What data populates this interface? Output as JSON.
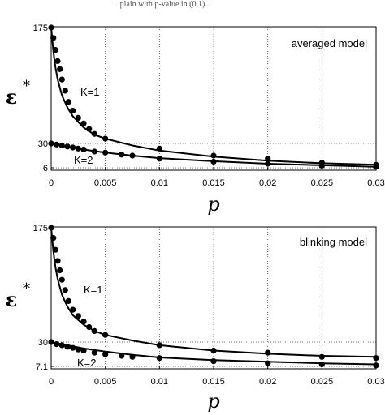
{
  "header_text": "...plain with p-value in (0,1)...",
  "chart_data": [
    {
      "type": "line",
      "annotation": "averaged model",
      "xlabel": "p",
      "ylabel": "ε",
      "ylabel_sup": "*",
      "xlim": [
        0,
        0.03
      ],
      "ylim": [
        0,
        175
      ],
      "grid": true,
      "x_ticks": [
        "0",
        "0.005",
        "0.01",
        "0.015",
        "0.02",
        "0.025",
        "0.03"
      ],
      "y_ticks": [
        {
          "value": 175,
          "label": "175"
        },
        {
          "value": 30,
          "label": "30"
        },
        {
          "value": 6,
          "label": "6"
        }
      ],
      "series": [
        {
          "name": "K=1",
          "line": [
            [
              0,
              175
            ],
            [
              0.0002,
              145
            ],
            [
              0.0004,
              125
            ],
            [
              0.0006,
              110
            ],
            [
              0.001,
              90
            ],
            [
              0.0015,
              75
            ],
            [
              0.002,
              64
            ],
            [
              0.003,
              50
            ],
            [
              0.004,
              41
            ],
            [
              0.005,
              36
            ],
            [
              0.0075,
              28
            ],
            [
              0.01,
              23
            ],
            [
              0.015,
              17
            ],
            [
              0.02,
              13
            ],
            [
              0.025,
              10.5
            ],
            [
              0.03,
              9
            ]
          ],
          "points": [
            [
              0,
              175
            ],
            [
              0.0002,
              162
            ],
            [
              0.0004,
              147
            ],
            [
              0.0006,
              133
            ],
            [
              0.0008,
              123
            ],
            [
              0.001,
              110
            ],
            [
              0.0013,
              96
            ],
            [
              0.0016,
              82
            ],
            [
              0.002,
              71
            ],
            [
              0.0025,
              62
            ],
            [
              0.003,
              55
            ],
            [
              0.0035,
              48
            ],
            [
              0.004,
              42
            ],
            [
              0.005,
              36
            ],
            [
              0.01,
              25
            ],
            [
              0.015,
              18
            ],
            [
              0.02,
              15
            ],
            [
              0.025,
              11
            ],
            [
              0.03,
              9
            ]
          ]
        },
        {
          "name": "K=2",
          "line": [
            [
              0,
              30
            ],
            [
              0.001,
              28
            ],
            [
              0.002,
              26
            ],
            [
              0.003,
              24
            ],
            [
              0.005,
              21
            ],
            [
              0.0075,
              18
            ],
            [
              0.01,
              15.5
            ],
            [
              0.015,
              12.5
            ],
            [
              0.02,
              10
            ],
            [
              0.025,
              8.5
            ],
            [
              0.03,
              7
            ]
          ],
          "points": [
            [
              0,
              30
            ],
            [
              0.0005,
              29
            ],
            [
              0.001,
              28
            ],
            [
              0.0015,
              27
            ],
            [
              0.002,
              26
            ],
            [
              0.0025,
              25
            ],
            [
              0.003,
              24
            ],
            [
              0.004,
              22
            ],
            [
              0.005,
              21
            ],
            [
              0.0065,
              19
            ],
            [
              0.0075,
              18
            ],
            [
              0.01,
              15
            ],
            [
              0.015,
              12
            ],
            [
              0.02,
              10
            ],
            [
              0.025,
              8
            ],
            [
              0.03,
              7
            ]
          ]
        }
      ]
    },
    {
      "type": "line",
      "annotation": "blinking model",
      "xlabel": "p",
      "ylabel": "ε",
      "ylabel_sup": "*",
      "xlim": [
        0,
        0.03
      ],
      "ylim": [
        0,
        175
      ],
      "grid": true,
      "x_ticks": [
        "0",
        "0.005",
        "0.01",
        "0.015",
        "0.02",
        "0.025",
        "0.03"
      ],
      "y_ticks": [
        {
          "value": 175,
          "label": "175"
        },
        {
          "value": 30,
          "label": "30"
        },
        {
          "value": 7.1,
          "label": "7.1"
        }
      ],
      "series": [
        {
          "name": "K=1",
          "line": [
            [
              0,
              175
            ],
            [
              0.0002,
              145
            ],
            [
              0.0004,
              125
            ],
            [
              0.0006,
              110
            ],
            [
              0.001,
              90
            ],
            [
              0.0015,
              75
            ],
            [
              0.002,
              64
            ],
            [
              0.003,
              52
            ],
            [
              0.004,
              44
            ],
            [
              0.005,
              39
            ],
            [
              0.0075,
              32
            ],
            [
              0.01,
              27
            ],
            [
              0.015,
              22
            ],
            [
              0.02,
              19
            ],
            [
              0.025,
              17
            ],
            [
              0.03,
              16
            ]
          ],
          "points": [
            [
              0,
              175
            ],
            [
              0.0002,
              162
            ],
            [
              0.0004,
              147
            ],
            [
              0.0006,
              133
            ],
            [
              0.0008,
              121
            ],
            [
              0.001,
              109
            ],
            [
              0.0013,
              96
            ],
            [
              0.0016,
              82
            ],
            [
              0.002,
              71
            ],
            [
              0.0025,
              63
            ],
            [
              0.003,
              56
            ],
            [
              0.0035,
              49
            ],
            [
              0.004,
              44
            ],
            [
              0.005,
              39
            ],
            [
              0.01,
              27
            ],
            [
              0.015,
              22
            ],
            [
              0.02,
              20
            ],
            [
              0.025,
              16
            ],
            [
              0.03,
              15
            ]
          ]
        },
        {
          "name": "K=2",
          "line": [
            [
              0,
              30
            ],
            [
              0.001,
              28
            ],
            [
              0.002,
              26
            ],
            [
              0.003,
              24
            ],
            [
              0.005,
              21
            ],
            [
              0.0075,
              18
            ],
            [
              0.01,
              15.5
            ],
            [
              0.015,
              13
            ],
            [
              0.02,
              11.5
            ],
            [
              0.025,
              10
            ],
            [
              0.03,
              9
            ]
          ],
          "points": [
            [
              0,
              30
            ],
            [
              0.0005,
              28
            ],
            [
              0.001,
              27
            ],
            [
              0.0015,
              25.5
            ],
            [
              0.002,
              24.5
            ],
            [
              0.0025,
              23
            ],
            [
              0.003,
              22
            ],
            [
              0.004,
              20
            ],
            [
              0.005,
              18.5
            ],
            [
              0.0065,
              17
            ],
            [
              0.0075,
              16
            ],
            [
              0.01,
              15
            ],
            [
              0.015,
              12
            ],
            [
              0.02,
              10
            ],
            [
              0.025,
              9
            ],
            [
              0.03,
              8
            ]
          ]
        }
      ]
    }
  ]
}
